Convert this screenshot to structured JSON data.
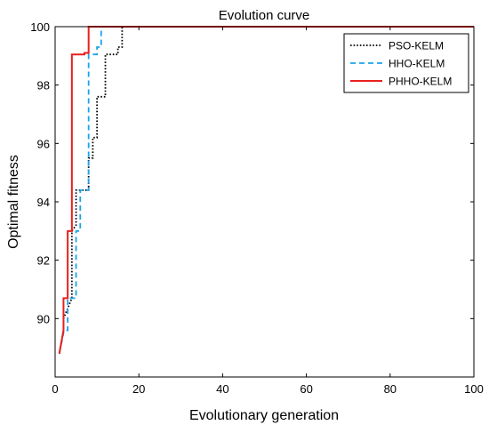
{
  "chart_data": {
    "type": "line",
    "title": "Evolution curve",
    "xlabel": "Evolutionary generation",
    "ylabel": "Optimal fitness",
    "xlim": [
      0,
      100
    ],
    "ylim": [
      88,
      100
    ],
    "xticks": [
      0,
      20,
      40,
      60,
      80,
      100
    ],
    "yticks": [
      90,
      92,
      94,
      96,
      98,
      100
    ],
    "grid": false,
    "legend_position": "top-right",
    "series": [
      {
        "name": "PSO-KELM",
        "color": "#000000",
        "style": "dotted",
        "x": [
          1,
          2,
          2,
          4,
          4,
          5,
          5,
          8,
          8,
          9,
          9,
          10,
          10,
          12,
          12,
          15,
          15,
          16,
          16,
          100
        ],
        "y": [
          88.8,
          89.6,
          90.0,
          90.7,
          93.0,
          93.2,
          94.4,
          94.4,
          95.5,
          95.5,
          96.2,
          96.2,
          97.6,
          97.6,
          99.05,
          99.05,
          99.3,
          99.3,
          100,
          100
        ]
      },
      {
        "name": "HHO-KELM",
        "color": "#1aa3e8",
        "style": "dashed",
        "x": [
          1,
          2,
          2,
          3,
          3,
          5,
          5,
          6,
          6,
          8,
          8,
          10,
          10,
          11,
          11,
          100
        ],
        "y": [
          88.8,
          89.5,
          89.6,
          89.6,
          90.7,
          90.7,
          93.0,
          93.0,
          94.4,
          94.4,
          99.05,
          99.05,
          99.3,
          99.3,
          100,
          100
        ]
      },
      {
        "name": "PHHO-KELM",
        "color": "#e8201c",
        "style": "solid",
        "x": [
          1,
          2,
          2,
          3,
          3,
          4,
          4,
          6,
          6,
          7,
          7,
          8,
          8,
          100
        ],
        "y": [
          88.8,
          89.6,
          90.7,
          90.7,
          93.0,
          93.0,
          99.05,
          99.05,
          99.05,
          99.05,
          99.1,
          99.1,
          100,
          100
        ]
      }
    ]
  }
}
